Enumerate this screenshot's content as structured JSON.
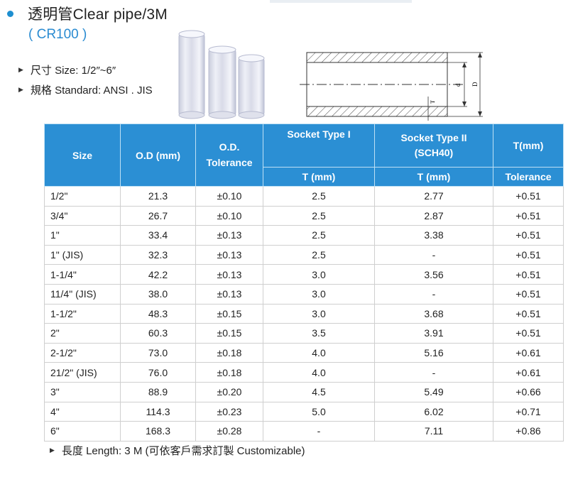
{
  "header": {
    "title": "透明管Clear pipe/3M",
    "model": "( CR100 )",
    "accent_color": "#2b8fd4",
    "specs": [
      "尺寸 Size: 1/2″~6″",
      "規格 Standard: ANSI . JIS"
    ]
  },
  "drawing": {
    "label_d": "d",
    "label_D": "D",
    "label_T": "T"
  },
  "table": {
    "headers": {
      "size": "Size",
      "od": "O.D (mm)",
      "od_tol_1": "O.D.",
      "od_tol_2": "Tolerance",
      "socket1": "Socket Type I",
      "socket2_1": "Socket Type II",
      "socket2_2": "(SCH40)",
      "t_mm": "T(mm)",
      "sub_socket1": "T (mm)",
      "sub_socket2": "T (mm)",
      "sub_tol": "Tolerance"
    },
    "rows": [
      {
        "size": "1/2\"",
        "od": "21.3",
        "tol": "±0.10",
        "t1": "2.5",
        "t2": "2.77",
        "ttol": "+0.51"
      },
      {
        "size": "3/4\"",
        "od": "26.7",
        "tol": "±0.10",
        "t1": "2.5",
        "t2": "2.87",
        "ttol": "+0.51"
      },
      {
        "size": "1\"",
        "od": "33.4",
        "tol": "±0.13",
        "t1": "2.5",
        "t2": "3.38",
        "ttol": "+0.51"
      },
      {
        "size": "1\" (JIS)",
        "od": "32.3",
        "tol": "±0.13",
        "t1": "2.5",
        "t2": "-",
        "ttol": "+0.51"
      },
      {
        "size": "1-1/4\"",
        "od": "42.2",
        "tol": "±0.13",
        "t1": "3.0",
        "t2": "3.56",
        "ttol": "+0.51"
      },
      {
        "size": "11/4\" (JIS)",
        "od": "38.0",
        "tol": "±0.13",
        "t1": "3.0",
        "t2": "-",
        "ttol": "+0.51"
      },
      {
        "size": "1-1/2\"",
        "od": "48.3",
        "tol": "±0.15",
        "t1": "3.0",
        "t2": "3.68",
        "ttol": "+0.51"
      },
      {
        "size": "2\"",
        "od": "60.3",
        "tol": "±0.15",
        "t1": "3.5",
        "t2": "3.91",
        "ttol": "+0.51"
      },
      {
        "size": "2-1/2\"",
        "od": "73.0",
        "tol": "±0.18",
        "t1": "4.0",
        "t2": "5.16",
        "ttol": "+0.61"
      },
      {
        "size": "21/2\" (JIS)",
        "od": "76.0",
        "tol": "±0.18",
        "t1": "4.0",
        "t2": "-",
        "ttol": "+0.61"
      },
      {
        "size": "3\"",
        "od": "88.9",
        "tol": "±0.20",
        "t1": "4.5",
        "t2": "5.49",
        "ttol": "+0.66"
      },
      {
        "size": "4\"",
        "od": "114.3",
        "tol": "±0.23",
        "t1": "5.0",
        "t2": "6.02",
        "ttol": "+0.71"
      },
      {
        "size": "6\"",
        "od": "168.3",
        "tol": "±0.28",
        "t1": "-",
        "t2": "7.11",
        "ttol": "+0.86"
      }
    ]
  },
  "footer": {
    "length_note": "長度 Length: 3 M (可依客戶需求訂製 Customizable)"
  }
}
